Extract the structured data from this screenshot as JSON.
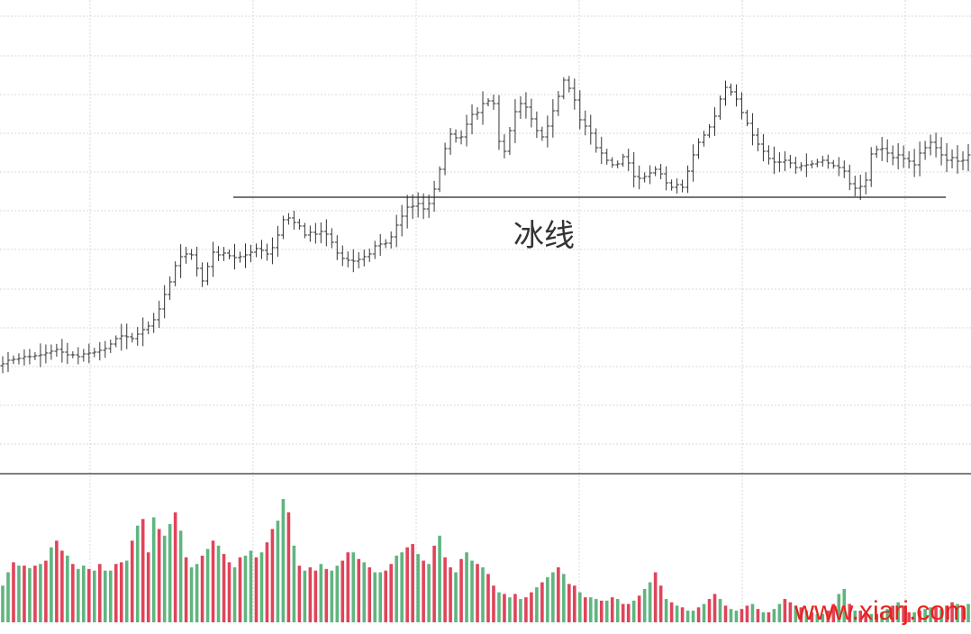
{
  "chart_data": {
    "type": "ohlc",
    "grid": true,
    "annotations": [
      {
        "label": "冰线",
        "kind": "horizontal-line",
        "level": 219
      }
    ],
    "colors": {
      "bar": "#333333",
      "grid": "#d9d9d9",
      "volume_up": "#e0445a",
      "volume_down": "#5fb57f",
      "divider": "#555555"
    },
    "price_range": [
      0,
      704
    ],
    "volume_range": [
      0,
      160
    ],
    "bar_count": 180,
    "closes": [
      404,
      400,
      399,
      398,
      396,
      396,
      395,
      394,
      392,
      390,
      388,
      391,
      394,
      394,
      396,
      393,
      392,
      391,
      389,
      387,
      382,
      376,
      373,
      374,
      376,
      371,
      366,
      362,
      355,
      343,
      327,
      313,
      295,
      285,
      282,
      283,
      298,
      312,
      296,
      280,
      283,
      281,
      284,
      286,
      285,
      283,
      280,
      276,
      278,
      282,
      275,
      261,
      244,
      242,
      247,
      251,
      261,
      258,
      260,
      257,
      260,
      269,
      281,
      287,
      289,
      290,
      288,
      285,
      282,
      273,
      271,
      270,
      263,
      250,
      240,
      230,
      229,
      226,
      232,
      226,
      210,
      188,
      165,
      149,
      153,
      152,
      138,
      127,
      125,
      115,
      112,
      115,
      157,
      168,
      145,
      124,
      115,
      119,
      132,
      145,
      152,
      140,
      123,
      107,
      89,
      98,
      111,
      133,
      140,
      148,
      164,
      170,
      178,
      183,
      182,
      174,
      181,
      196,
      198,
      196,
      192,
      188,
      193,
      203,
      208,
      205,
      208,
      190,
      172,
      158,
      150,
      141,
      129,
      110,
      97,
      102,
      110,
      125,
      137,
      150,
      160,
      168,
      176,
      180,
      180,
      178,
      181,
      186,
      184,
      183,
      182,
      180,
      178,
      181,
      184,
      186,
      190,
      204,
      209,
      207,
      200,
      171,
      166,
      165,
      170,
      175,
      172,
      176,
      179,
      183,
      170,
      164,
      158,
      164,
      172,
      178,
      175,
      179,
      178,
      172
    ],
    "volumes": [
      44,
      60,
      72,
      68,
      68,
      65,
      68,
      70,
      74,
      90,
      98,
      86,
      80,
      70,
      64,
      68,
      64,
      62,
      70,
      62,
      62,
      70,
      72,
      74,
      98,
      116,
      124,
      84,
      126,
      112,
      104,
      118,
      132,
      110,
      78,
      66,
      70,
      80,
      88,
      98,
      92,
      82,
      72,
      66,
      78,
      80,
      86,
      78,
      84,
      96,
      112,
      122,
      148,
      132,
      92,
      68,
      62,
      66,
      62,
      70,
      64,
      62,
      68,
      74,
      84,
      84,
      76,
      72,
      66,
      60,
      60,
      62,
      70,
      80,
      84,
      90,
      94,
      82,
      74,
      70,
      92,
      104,
      78,
      66,
      60,
      76,
      84,
      74,
      70,
      66,
      58,
      44,
      36,
      34,
      30,
      34,
      28,
      30,
      36,
      42,
      48,
      54,
      60,
      66,
      58,
      46,
      44,
      36,
      30,
      30,
      28,
      26,
      26,
      30,
      28,
      22,
      22,
      26,
      32,
      40,
      48,
      60,
      44,
      28,
      24,
      20,
      18,
      14,
      14,
      18,
      22,
      28,
      34,
      28,
      20,
      16,
      14,
      16,
      20,
      22,
      16,
      12,
      12,
      16,
      22,
      28,
      24,
      20,
      18,
      14,
      12,
      10,
      10,
      14,
      22,
      34,
      40,
      22,
      14,
      14,
      12,
      10,
      10,
      12,
      16,
      20,
      24,
      20,
      12,
      12,
      14,
      16,
      18,
      18,
      16,
      20,
      24,
      22,
      20,
      22
    ],
    "volume_up": [
      0,
      0,
      1,
      0,
      1,
      0,
      1,
      0,
      1,
      0,
      1,
      1,
      0,
      1,
      0,
      0,
      1,
      0,
      1,
      0,
      0,
      1,
      1,
      0,
      1,
      0,
      1,
      1,
      0,
      1,
      0,
      0,
      1,
      0,
      1,
      0,
      0,
      1,
      0,
      1,
      0,
      1,
      1,
      0,
      1,
      0,
      0,
      1,
      0,
      1,
      1,
      0,
      0,
      1,
      0,
      1,
      0,
      1,
      1,
      0,
      1,
      0,
      0,
      1,
      1,
      0,
      1,
      0,
      1,
      0,
      0,
      1,
      1,
      0,
      0,
      1,
      1,
      0,
      1,
      0,
      1,
      0,
      1,
      1,
      0,
      1,
      0,
      0,
      1,
      0,
      1,
      1,
      0,
      1,
      0,
      1,
      0,
      1,
      1,
      0,
      1,
      0,
      0,
      1,
      0,
      1,
      1,
      0,
      1,
      0,
      0,
      1,
      0,
      1,
      0,
      1,
      1,
      0,
      1,
      0,
      0,
      1,
      1,
      0,
      1,
      0,
      1,
      0,
      0,
      1,
      0,
      1,
      1,
      0,
      1,
      0,
      0,
      1,
      1,
      0,
      1,
      0,
      1,
      0,
      0,
      1,
      1,
      0,
      1,
      0,
      1,
      0,
      0,
      1,
      1,
      0,
      0,
      1,
      0,
      1,
      1,
      0,
      1,
      0,
      0,
      1,
      0,
      1,
      1,
      0,
      1,
      0,
      0,
      1,
      0,
      1,
      1,
      0,
      1,
      0
    ]
  },
  "watermark": "www.xiarj.com"
}
